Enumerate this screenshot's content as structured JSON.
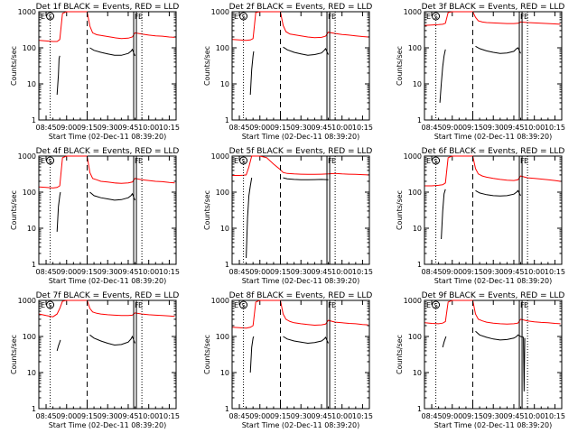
{
  "common": {
    "type": "line",
    "xlabel": "Start Time (02-Dec-11 08:39:20)",
    "ylabel": "Counts/sec",
    "x_ticks": [
      "08:45",
      "09:00",
      "09:15",
      "09:30",
      "09:45",
      "10:00",
      "10:15"
    ],
    "x_tick_minutes": [
      0,
      15,
      30,
      45,
      60,
      75,
      90
    ],
    "xlim_minutes": [
      -5.3,
      95
    ],
    "y_ticks": [
      "1",
      "10",
      "100",
      "1000"
    ],
    "y_tick_values": [
      1,
      10,
      100,
      1000
    ],
    "ylim": [
      1,
      1000
    ],
    "yscale": "log",
    "markers": {
      "S": "S",
      "F": "F",
      "E": "E"
    },
    "colors": {
      "events": "#000000",
      "lld": "#ff0000",
      "axes": "#000000"
    }
  },
  "chart_data": [
    {
      "title": "Det 1f BLACK = Events, RED = LLD",
      "series": [
        {
          "name": "Events",
          "color": "#000000",
          "x": [
            8,
            9,
            9.5,
            10
          ],
          "y": [
            5,
            18,
            50,
            60
          ]
        },
        {
          "name": "Events",
          "color": "#000000",
          "x": [
            32,
            35,
            40,
            45,
            50,
            55,
            60,
            62,
            63,
            65
          ],
          "y": [
            100,
            85,
            75,
            68,
            62,
            62,
            70,
            80,
            90,
            60
          ]
        },
        {
          "name": "LLD",
          "color": "#ff0000",
          "x": [
            -5,
            0,
            5,
            8,
            10,
            12,
            15,
            30,
            32,
            34,
            37,
            40,
            45,
            50,
            55,
            60,
            63,
            65,
            70,
            75,
            80,
            85,
            90,
            94
          ],
          "y": [
            160,
            155,
            150,
            150,
            170,
            900,
            1000,
            1000,
            400,
            260,
            230,
            220,
            205,
            190,
            180,
            185,
            200,
            260,
            240,
            225,
            215,
            210,
            200,
            195
          ]
        }
      ]
    },
    {
      "title": "Det 2f BLACK = Events, RED = LLD",
      "series": [
        {
          "name": "Events",
          "color": "#000000",
          "x": [
            8,
            9,
            10,
            10.5
          ],
          "y": [
            5,
            25,
            60,
            80
          ]
        },
        {
          "name": "Events",
          "color": "#000000",
          "x": [
            32,
            35,
            40,
            45,
            50,
            55,
            60,
            62,
            63,
            65
          ],
          "y": [
            105,
            88,
            75,
            68,
            62,
            65,
            72,
            85,
            95,
            65
          ]
        },
        {
          "name": "LLD",
          "color": "#ff0000",
          "x": [
            -5,
            0,
            5,
            8,
            10,
            12,
            15,
            30,
            32,
            34,
            37,
            40,
            45,
            50,
            55,
            60,
            63,
            65,
            70,
            75,
            80,
            85,
            90,
            94
          ],
          "y": [
            170,
            165,
            160,
            165,
            180,
            950,
            1000,
            1000,
            420,
            280,
            240,
            230,
            215,
            200,
            190,
            195,
            210,
            270,
            250,
            235,
            225,
            215,
            205,
            200
          ]
        }
      ]
    },
    {
      "title": "Det 3f BLACK = Events, RED = LLD",
      "series": [
        {
          "name": "Events",
          "color": "#000000",
          "x": [
            6,
            7,
            8,
            9,
            10
          ],
          "y": [
            3,
            10,
            30,
            60,
            90
          ]
        },
        {
          "name": "Events",
          "color": "#000000",
          "x": [
            32,
            35,
            40,
            45,
            50,
            55,
            60,
            62,
            63,
            65
          ],
          "y": [
            110,
            95,
            82,
            75,
            70,
            72,
            80,
            95,
            100,
            70
          ]
        },
        {
          "name": "LLD",
          "color": "#ff0000",
          "x": [
            -5,
            0,
            5,
            8,
            10,
            12,
            15,
            30,
            32,
            34,
            37,
            40,
            45,
            50,
            55,
            60,
            63,
            65,
            70,
            75,
            80,
            85,
            90,
            94
          ],
          "y": [
            420,
            430,
            440,
            450,
            480,
            950,
            1000,
            1000,
            700,
            560,
            520,
            500,
            490,
            480,
            470,
            470,
            480,
            520,
            500,
            490,
            480,
            470,
            460,
            450
          ]
        }
      ]
    },
    {
      "title": "Det 4f BLACK = Events, RED = LLD",
      "series": [
        {
          "name": "Events",
          "color": "#000000",
          "x": [
            8,
            9,
            10,
            10.5
          ],
          "y": [
            8,
            40,
            80,
            100
          ]
        },
        {
          "name": "Events",
          "color": "#000000",
          "x": [
            32,
            35,
            40,
            45,
            50,
            55,
            60,
            62,
            63,
            65
          ],
          "y": [
            100,
            80,
            70,
            65,
            60,
            62,
            70,
            80,
            90,
            60
          ]
        },
        {
          "name": "LLD",
          "color": "#ff0000",
          "x": [
            -5,
            0,
            5,
            8,
            10,
            12,
            15,
            30,
            32,
            34,
            37,
            40,
            45,
            50,
            55,
            60,
            63,
            65,
            70,
            75,
            80,
            85,
            90,
            94
          ],
          "y": [
            140,
            135,
            130,
            135,
            150,
            900,
            1000,
            1000,
            350,
            240,
            220,
            200,
            190,
            180,
            175,
            180,
            190,
            240,
            220,
            210,
            200,
            195,
            185,
            180
          ]
        }
      ]
    },
    {
      "title": "Det 5f BLACK = Events, RED = LLD",
      "series": [
        {
          "name": "Events",
          "color": "#000000",
          "x": [
            5,
            6,
            7,
            8,
            9
          ],
          "y": [
            1.5,
            20,
            80,
            150,
            250
          ]
        },
        {
          "name": "Events",
          "color": "#000000",
          "x": [
            32,
            35,
            40,
            45,
            50,
            55,
            60,
            65
          ],
          "y": [
            250,
            235,
            225,
            220,
            220,
            222,
            225,
            220
          ]
        },
        {
          "name": "LLD",
          "color": "#ff0000",
          "x": [
            -5,
            0,
            3,
            5,
            7,
            9,
            12,
            15,
            20,
            25,
            30,
            32,
            35,
            40,
            45,
            50,
            55,
            60,
            65,
            70,
            75,
            80,
            85,
            90,
            94
          ],
          "y": [
            290,
            290,
            295,
            300,
            500,
            1000,
            1000,
            1000,
            900,
            600,
            420,
            350,
            330,
            320,
            315,
            310,
            310,
            315,
            320,
            330,
            320,
            315,
            310,
            305,
            300
          ]
        }
      ]
    },
    {
      "title": "Det 6f BLACK = Events, RED = LLD",
      "series": [
        {
          "name": "Events",
          "color": "#000000",
          "x": [
            7,
            8,
            9,
            10
          ],
          "y": [
            5,
            30,
            90,
            120
          ]
        },
        {
          "name": "Events",
          "color": "#000000",
          "x": [
            32,
            35,
            40,
            45,
            50,
            55,
            60,
            62,
            63,
            65
          ],
          "y": [
            110,
            95,
            85,
            80,
            78,
            80,
            88,
            100,
            110,
            80
          ]
        },
        {
          "name": "LLD",
          "color": "#ff0000",
          "x": [
            -5,
            0,
            5,
            8,
            10,
            12,
            15,
            30,
            32,
            34,
            37,
            40,
            45,
            50,
            55,
            60,
            63,
            65,
            70,
            75,
            80,
            85,
            90,
            94
          ],
          "y": [
            150,
            150,
            155,
            160,
            180,
            900,
            1000,
            1000,
            450,
            320,
            280,
            260,
            240,
            225,
            215,
            210,
            220,
            280,
            250,
            240,
            230,
            220,
            210,
            200
          ]
        }
      ]
    },
    {
      "title": "Det 7f BLACK = Events, RED = LLD",
      "series": [
        {
          "name": "Events",
          "color": "#000000",
          "x": [
            8,
            9,
            10,
            10.5
          ],
          "y": [
            40,
            55,
            70,
            80
          ]
        },
        {
          "name": "Events",
          "color": "#000000",
          "x": [
            32,
            35,
            40,
            45,
            50,
            55,
            60,
            62,
            63,
            65
          ],
          "y": [
            110,
            90,
            75,
            65,
            58,
            60,
            70,
            85,
            100,
            65
          ]
        },
        {
          "name": "LLD",
          "color": "#ff0000",
          "x": [
            -5,
            0,
            5,
            8,
            10,
            12,
            15,
            30,
            32,
            34,
            37,
            40,
            45,
            50,
            55,
            60,
            63,
            65,
            70,
            75,
            80,
            85,
            90,
            94
          ],
          "y": [
            420,
            380,
            350,
            420,
            600,
            950,
            1000,
            1000,
            600,
            480,
            440,
            420,
            400,
            390,
            380,
            380,
            390,
            450,
            420,
            400,
            390,
            380,
            370,
            360
          ]
        }
      ]
    },
    {
      "title": "Det 8f BLACK = Events, RED = LLD",
      "series": [
        {
          "name": "Events",
          "color": "#000000",
          "x": [
            8,
            9,
            10,
            10.5
          ],
          "y": [
            10,
            50,
            90,
            100
          ]
        },
        {
          "name": "Events",
          "color": "#000000",
          "x": [
            32,
            35,
            40,
            45,
            50,
            55,
            60,
            62,
            63,
            65
          ],
          "y": [
            100,
            85,
            75,
            70,
            65,
            68,
            75,
            85,
            95,
            65
          ]
        },
        {
          "name": "LLD",
          "color": "#ff0000",
          "x": [
            -5,
            0,
            5,
            8,
            10,
            12,
            15,
            30,
            32,
            34,
            37,
            40,
            45,
            50,
            55,
            60,
            63,
            65,
            70,
            75,
            80,
            85,
            90,
            94
          ],
          "y": [
            180,
            175,
            170,
            180,
            200,
            900,
            1000,
            1000,
            420,
            300,
            260,
            240,
            225,
            215,
            205,
            210,
            220,
            280,
            250,
            240,
            230,
            225,
            215,
            210
          ]
        }
      ]
    },
    {
      "title": "Det 9f BLACK = Events, RED = LLD",
      "series": [
        {
          "name": "Events",
          "color": "#000000",
          "x": [
            8,
            9,
            10,
            10.5
          ],
          "y": [
            50,
            70,
            90,
            100
          ]
        },
        {
          "name": "Events",
          "color": "#000000",
          "x": [
            32,
            35,
            40,
            45,
            50,
            55,
            60,
            62,
            63,
            65,
            67,
            67.5,
            68
          ],
          "y": [
            140,
            110,
            95,
            85,
            80,
            82,
            90,
            100,
            110,
            100,
            95,
            3,
            90
          ]
        },
        {
          "name": "LLD",
          "color": "#ff0000",
          "x": [
            -5,
            0,
            5,
            8,
            10,
            12,
            15,
            30,
            32,
            34,
            37,
            40,
            45,
            50,
            55,
            60,
            63,
            65,
            70,
            75,
            80,
            85,
            90,
            94
          ],
          "y": [
            240,
            230,
            225,
            235,
            260,
            900,
            1000,
            1000,
            420,
            300,
            270,
            250,
            235,
            225,
            220,
            225,
            235,
            300,
            270,
            255,
            245,
            240,
            230,
            225
          ]
        }
      ]
    }
  ]
}
